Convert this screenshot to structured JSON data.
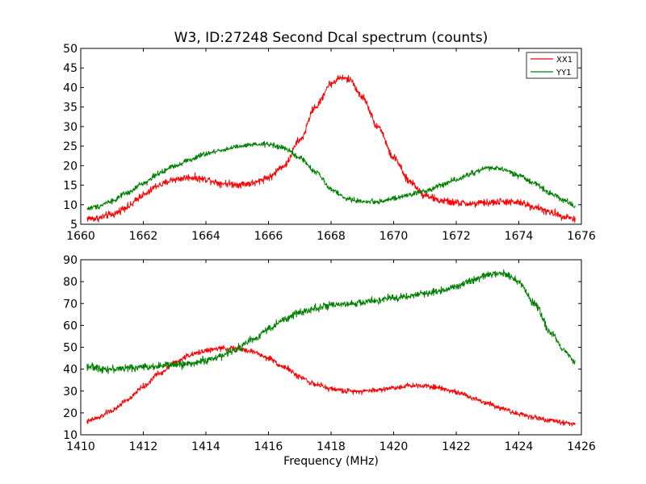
{
  "figure": {
    "background": "#ffffff"
  },
  "chart_data": [
    {
      "type": "line",
      "title": "W3, ID:27248 Second Dcal spectrum (counts)",
      "xlabel": "",
      "ylabel": "",
      "xlim": [
        1660,
        1676
      ],
      "ylim": [
        5,
        50
      ],
      "xticks": [
        "1660",
        "1662",
        "1664",
        "1666",
        "1668",
        "1670",
        "1672",
        "1674",
        "1676"
      ],
      "yticks": [
        "5",
        "10",
        "15",
        "20",
        "25",
        "30",
        "35",
        "40",
        "45",
        "50"
      ],
      "legend": {
        "position": "top-right",
        "entries": [
          "XX1",
          "YY1"
        ]
      },
      "grid": false,
      "series": [
        {
          "name": "XX1",
          "color": "#ff0000",
          "noise": 0.7,
          "x": [
            1660.2,
            1660.5,
            1661,
            1661.5,
            1662,
            1662.5,
            1663,
            1663.5,
            1664,
            1664.5,
            1665,
            1665.5,
            1666,
            1666.5,
            1667,
            1667.5,
            1668,
            1668.3,
            1668.6,
            1669,
            1669.5,
            1670,
            1670.5,
            1671,
            1671.5,
            1672,
            1672.5,
            1673,
            1673.5,
            1674,
            1674.5,
            1675,
            1675.5,
            1675.8
          ],
          "y": [
            6.5,
            6.5,
            7.5,
            9.5,
            12.5,
            15,
            16.5,
            17,
            16.5,
            15.5,
            15.2,
            15.5,
            17,
            20,
            26.5,
            35,
            41,
            42.5,
            42,
            37.5,
            30,
            22,
            16,
            12.5,
            11,
            10.5,
            10.2,
            10.5,
            10.8,
            10.5,
            9.5,
            8,
            7,
            6.3
          ]
        },
        {
          "name": "YY1",
          "color": "#008000",
          "noise": 0.5,
          "x": [
            1660.2,
            1660.5,
            1661,
            1661.5,
            1662,
            1662.5,
            1663,
            1663.5,
            1664,
            1664.5,
            1665,
            1665.5,
            1666,
            1666.5,
            1667,
            1667.5,
            1668,
            1668.5,
            1669,
            1669.5,
            1670,
            1670.5,
            1671,
            1671.5,
            1672,
            1672.5,
            1673,
            1673.5,
            1674,
            1674.5,
            1675,
            1675.5,
            1675.8
          ],
          "y": [
            9,
            9.5,
            11,
            13,
            15.5,
            18,
            20,
            21.5,
            23,
            24,
            24.8,
            25.3,
            25.5,
            24.5,
            22,
            18.5,
            14,
            11.5,
            10.8,
            10.8,
            11.5,
            12.5,
            13.5,
            15,
            16.5,
            18,
            19.5,
            19,
            17.5,
            15.5,
            13,
            11,
            9.5
          ]
        }
      ]
    },
    {
      "type": "line",
      "title": "",
      "xlabel": "Frequency (MHz)",
      "ylabel": "",
      "xlim": [
        1410,
        1426
      ],
      "ylim": [
        10,
        90
      ],
      "xticks": [
        "1410",
        "1412",
        "1414",
        "1416",
        "1418",
        "1420",
        "1422",
        "1424",
        "1426"
      ],
      "yticks": [
        "10",
        "20",
        "30",
        "40",
        "50",
        "60",
        "70",
        "80",
        "90"
      ],
      "grid": false,
      "series": [
        {
          "name": "XX1",
          "color": "#ff0000",
          "noise": 0.9,
          "x": [
            1410.2,
            1410.5,
            1411,
            1411.5,
            1412,
            1412.5,
            1413,
            1413.5,
            1414,
            1414.5,
            1415,
            1415.5,
            1416,
            1416.5,
            1417,
            1417.5,
            1418,
            1418.5,
            1419,
            1419.5,
            1420,
            1420.5,
            1421,
            1421.5,
            1422,
            1422.5,
            1423,
            1423.5,
            1424,
            1424.5,
            1425,
            1425.5,
            1425.8
          ],
          "y": [
            16,
            17.5,
            21,
            26,
            32,
            38,
            43,
            46.5,
            48.5,
            49.5,
            49.5,
            48,
            45,
            41,
            36.5,
            33,
            31,
            30,
            30,
            30.5,
            31.5,
            32.5,
            32.5,
            31.5,
            29.5,
            27,
            24.5,
            22,
            19.5,
            18,
            16.5,
            15.5,
            15
          ]
        },
        {
          "name": "YY1",
          "color": "#008000",
          "noise": 1.3,
          "x": [
            1410.2,
            1410.5,
            1411,
            1411.5,
            1412,
            1412.5,
            1413,
            1413.5,
            1414,
            1414.5,
            1415,
            1415.5,
            1416,
            1416.5,
            1417,
            1417.5,
            1418,
            1418.5,
            1419,
            1419.5,
            1420,
            1420.5,
            1421,
            1421.5,
            1422,
            1422.5,
            1423,
            1423.5,
            1424,
            1424.5,
            1425,
            1425.5,
            1425.8
          ],
          "y": [
            41.5,
            40.5,
            40,
            40.5,
            41,
            41.5,
            42,
            42.5,
            44,
            46,
            49.5,
            53.5,
            58.5,
            62.5,
            66,
            68,
            69,
            69.5,
            70.5,
            71.5,
            72.5,
            73.5,
            74.5,
            76,
            78,
            80.5,
            83,
            84,
            80,
            70,
            57,
            48,
            43
          ]
        }
      ]
    }
  ]
}
